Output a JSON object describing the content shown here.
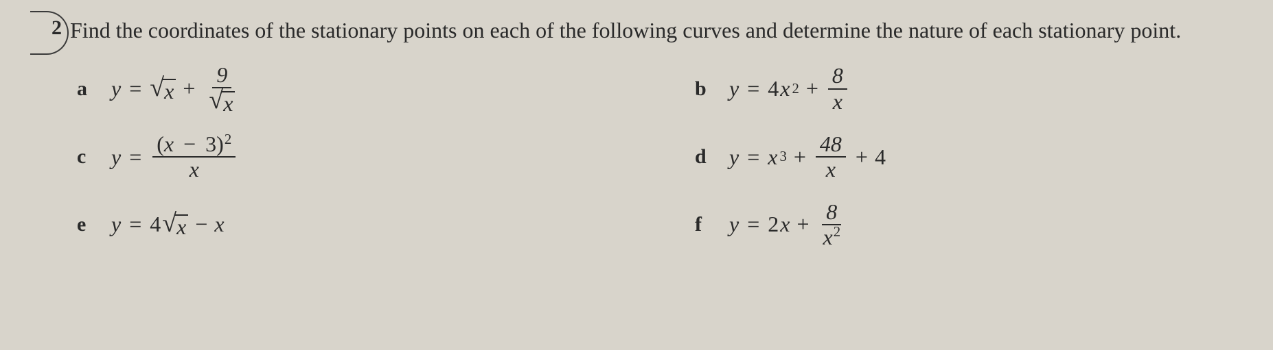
{
  "colors": {
    "background": "#d8d4cb",
    "text": "#2a2a2a",
    "rule": "#2a2a2a",
    "arc": "#3a3a3a"
  },
  "typography": {
    "body_font": "Georgia, 'Times New Roman', serif",
    "body_size_pt": 24,
    "label_size_pt": 22,
    "label_weight": "bold"
  },
  "question": {
    "number": "2",
    "prompt": "Find the coordinates of the stationary points on each of the following curves and determine the nature of each stationary point."
  },
  "parts": {
    "a": {
      "label": "a",
      "lhs": "y",
      "terms": {
        "t1_sqrt_arg": "x",
        "op1": "+",
        "t2_frac_num": "9",
        "t2_frac_den_sqrt_arg": "x"
      }
    },
    "b": {
      "label": "b",
      "lhs": "y",
      "terms": {
        "t1_coef": "4",
        "t1_var": "x",
        "t1_exp": "2",
        "op1": "+",
        "t2_frac_num": "8",
        "t2_frac_den": "x"
      }
    },
    "c": {
      "label": "c",
      "lhs": "y",
      "frac": {
        "num_open": "(",
        "num_var": "x",
        "num_op": "−",
        "num_const": "3",
        "num_close": ")",
        "num_exp": "2",
        "den": "x"
      }
    },
    "d": {
      "label": "d",
      "lhs": "y",
      "terms": {
        "t1_var": "x",
        "t1_exp": "3",
        "op1": "+",
        "t2_frac_num": "48",
        "t2_frac_den": "x",
        "op2": "+",
        "t3_const": "4"
      }
    },
    "e": {
      "label": "e",
      "lhs": "y",
      "terms": {
        "t1_coef": "4",
        "t1_sqrt_arg": "x",
        "op1": "−",
        "t2_var": "x"
      }
    },
    "f": {
      "label": "f",
      "lhs": "y",
      "terms": {
        "t1_coef": "2",
        "t1_var": "x",
        "op1": "+",
        "t2_frac_num": "8",
        "t2_frac_den_var": "x",
        "t2_frac_den_exp": "2"
      }
    }
  },
  "symbols": {
    "equals": "=",
    "radical": "√"
  }
}
